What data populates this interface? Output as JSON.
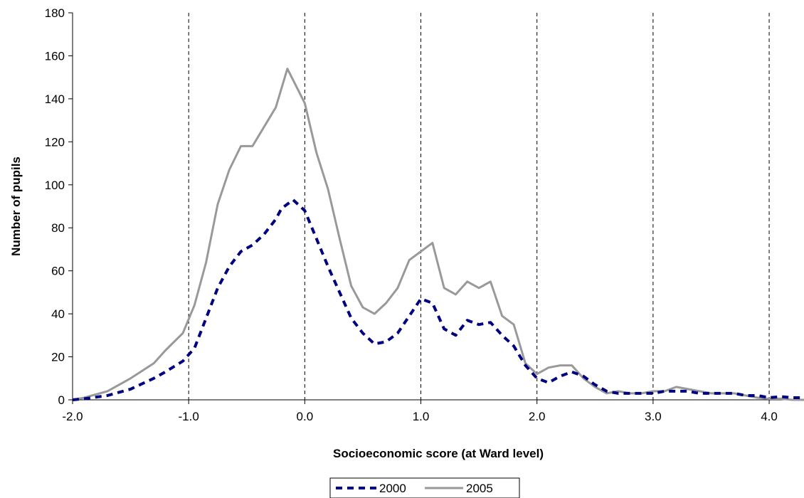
{
  "chart_data": {
    "type": "line",
    "title": "",
    "xlabel": "Socioeconomic score (at Ward level)",
    "ylabel": "Number of pupils",
    "xlim": [
      -2.0,
      4.3
    ],
    "ylim": [
      0,
      180
    ],
    "x_ticks": [
      -2.0,
      -1.0,
      0.0,
      1.0,
      2.0,
      3.0,
      4.0
    ],
    "x_tick_labels": [
      "-2.0",
      "-1.0",
      "0.0",
      "1.0",
      "2.0",
      "3.0",
      "4.0"
    ],
    "y_ticks": [
      0,
      20,
      40,
      60,
      80,
      100,
      120,
      140,
      160,
      180
    ],
    "y_tick_labels": [
      "0",
      "20",
      "40",
      "60",
      "80",
      "100",
      "120",
      "140",
      "160",
      "180"
    ],
    "vertical_dashed_gridlines_at": [
      -1.0,
      0.0,
      1.0,
      2.0,
      3.0,
      4.0
    ],
    "legend_position": "bottom-center",
    "series": [
      {
        "name": "2000",
        "color": "#000080",
        "style": "dashed",
        "points": [
          [
            -2.0,
            0
          ],
          [
            -1.9,
            0.5
          ],
          [
            -1.7,
            2
          ],
          [
            -1.5,
            5
          ],
          [
            -1.3,
            10
          ],
          [
            -1.2,
            13
          ],
          [
            -1.05,
            18
          ],
          [
            -0.95,
            24
          ],
          [
            -0.85,
            38
          ],
          [
            -0.75,
            52
          ],
          [
            -0.65,
            62
          ],
          [
            -0.55,
            69
          ],
          [
            -0.45,
            72
          ],
          [
            -0.35,
            77
          ],
          [
            -0.25,
            84
          ],
          [
            -0.2,
            89
          ],
          [
            -0.1,
            93
          ],
          [
            0.0,
            88
          ],
          [
            0.1,
            75
          ],
          [
            0.2,
            62
          ],
          [
            0.3,
            50
          ],
          [
            0.4,
            38
          ],
          [
            0.5,
            31
          ],
          [
            0.6,
            26
          ],
          [
            0.7,
            27
          ],
          [
            0.8,
            31
          ],
          [
            0.9,
            39
          ],
          [
            1.0,
            47
          ],
          [
            1.1,
            45
          ],
          [
            1.2,
            33
          ],
          [
            1.3,
            30
          ],
          [
            1.4,
            37
          ],
          [
            1.5,
            35
          ],
          [
            1.6,
            36
          ],
          [
            1.7,
            30
          ],
          [
            1.8,
            25
          ],
          [
            1.9,
            16
          ],
          [
            2.0,
            10
          ],
          [
            2.1,
            8
          ],
          [
            2.2,
            11
          ],
          [
            2.3,
            13
          ],
          [
            2.4,
            11
          ],
          [
            2.5,
            7
          ],
          [
            2.6,
            4
          ],
          [
            2.7,
            3
          ],
          [
            2.8,
            3
          ],
          [
            2.9,
            3
          ],
          [
            3.0,
            3
          ],
          [
            3.1,
            4
          ],
          [
            3.2,
            4
          ],
          [
            3.3,
            4
          ],
          [
            3.4,
            3
          ],
          [
            3.5,
            3
          ],
          [
            3.6,
            3
          ],
          [
            3.7,
            3
          ],
          [
            3.8,
            2
          ],
          [
            3.9,
            2
          ],
          [
            4.0,
            1
          ],
          [
            4.1,
            1.5
          ],
          [
            4.2,
            1
          ],
          [
            4.3,
            1
          ]
        ]
      },
      {
        "name": "2005",
        "color": "#999999",
        "style": "solid",
        "points": [
          [
            -2.0,
            0
          ],
          [
            -1.9,
            1
          ],
          [
            -1.7,
            4
          ],
          [
            -1.5,
            10
          ],
          [
            -1.3,
            17
          ],
          [
            -1.2,
            23
          ],
          [
            -1.05,
            31
          ],
          [
            -0.95,
            44
          ],
          [
            -0.85,
            64
          ],
          [
            -0.75,
            91
          ],
          [
            -0.65,
            107
          ],
          [
            -0.55,
            118
          ],
          [
            -0.45,
            118
          ],
          [
            -0.35,
            127
          ],
          [
            -0.25,
            136
          ],
          [
            -0.15,
            154
          ],
          [
            0.0,
            138
          ],
          [
            0.1,
            115
          ],
          [
            0.2,
            98
          ],
          [
            0.3,
            75
          ],
          [
            0.4,
            53
          ],
          [
            0.5,
            43
          ],
          [
            0.6,
            40
          ],
          [
            0.7,
            45
          ],
          [
            0.8,
            52
          ],
          [
            0.9,
            65
          ],
          [
            1.0,
            69
          ],
          [
            1.1,
            73
          ],
          [
            1.2,
            52
          ],
          [
            1.3,
            49
          ],
          [
            1.4,
            55
          ],
          [
            1.5,
            52
          ],
          [
            1.6,
            55
          ],
          [
            1.7,
            39
          ],
          [
            1.8,
            35
          ],
          [
            1.9,
            17
          ],
          [
            2.0,
            12
          ],
          [
            2.1,
            15
          ],
          [
            2.2,
            16
          ],
          [
            2.3,
            16
          ],
          [
            2.4,
            10
          ],
          [
            2.5,
            6
          ],
          [
            2.6,
            3
          ],
          [
            2.7,
            4
          ],
          [
            2.8,
            3
          ],
          [
            2.9,
            3
          ],
          [
            3.0,
            4
          ],
          [
            3.1,
            4
          ],
          [
            3.2,
            6
          ],
          [
            3.3,
            5
          ],
          [
            3.4,
            4
          ],
          [
            3.5,
            3
          ],
          [
            3.6,
            3
          ],
          [
            3.7,
            3
          ],
          [
            3.8,
            2
          ],
          [
            3.9,
            1
          ],
          [
            4.0,
            0.5
          ],
          [
            4.1,
            0.5
          ],
          [
            4.2,
            0
          ],
          [
            4.3,
            0
          ]
        ]
      }
    ]
  }
}
